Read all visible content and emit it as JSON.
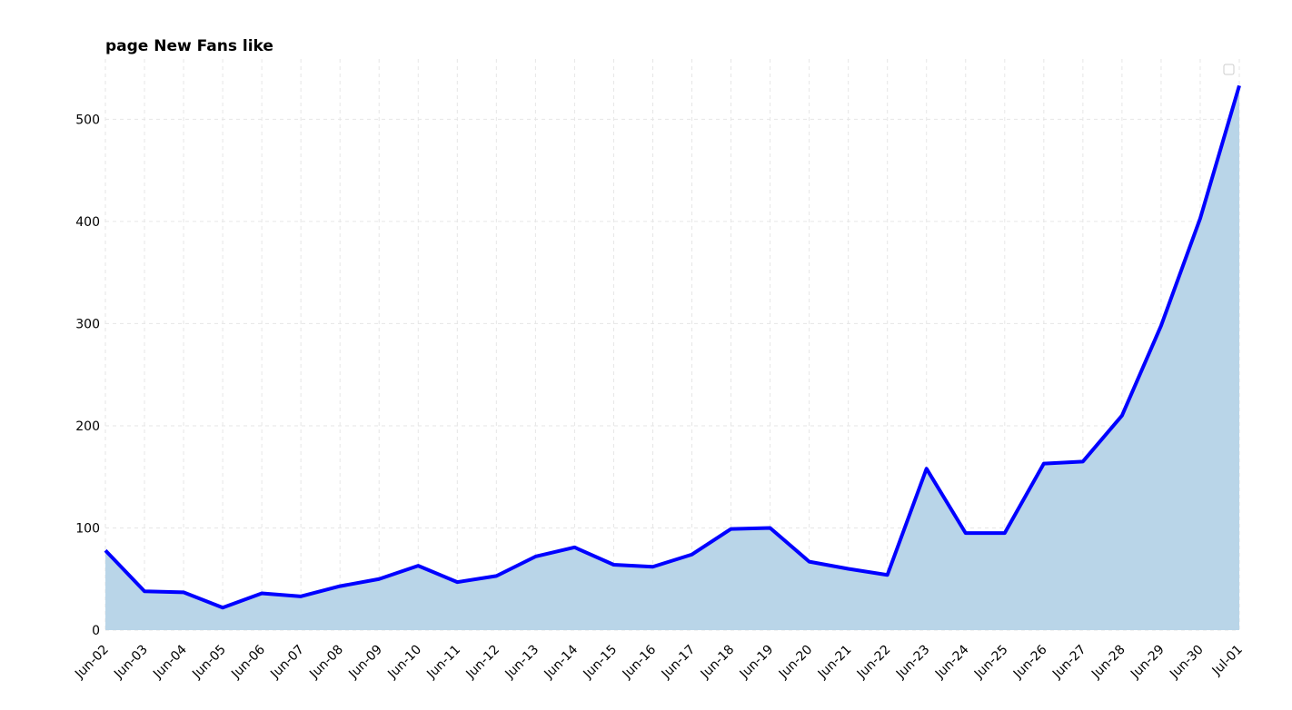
{
  "chart_data": {
    "type": "line",
    "title": "page New Fans like",
    "categories": [
      "Jun-02",
      "Jun-03",
      "Jun-04",
      "Jun-05",
      "Jun-06",
      "Jun-07",
      "Jun-08",
      "Jun-09",
      "Jun-10",
      "Jun-11",
      "Jun-12",
      "Jun-13",
      "Jun-14",
      "Jun-15",
      "Jun-16",
      "Jun-17",
      "Jun-18",
      "Jun-19",
      "Jun-20",
      "Jun-21",
      "Jun-22",
      "Jun-23",
      "Jun-24",
      "Jun-25",
      "Jun-26",
      "Jun-27",
      "Jun-28",
      "Jun-29",
      "Jun-30",
      "Jul-01"
    ],
    "values": [
      78,
      38,
      37,
      22,
      36,
      33,
      43,
      50,
      63,
      47,
      53,
      72,
      81,
      64,
      62,
      74,
      99,
      100,
      67,
      60,
      54,
      158,
      95,
      95,
      163,
      165,
      210,
      298,
      403,
      533
    ],
    "color": "#0000ff",
    "fill_color": "#b9d5e8",
    "ylim": [
      0,
      559
    ],
    "yticks": [
      0,
      100,
      200,
      300,
      400,
      500
    ],
    "grid": true
  }
}
